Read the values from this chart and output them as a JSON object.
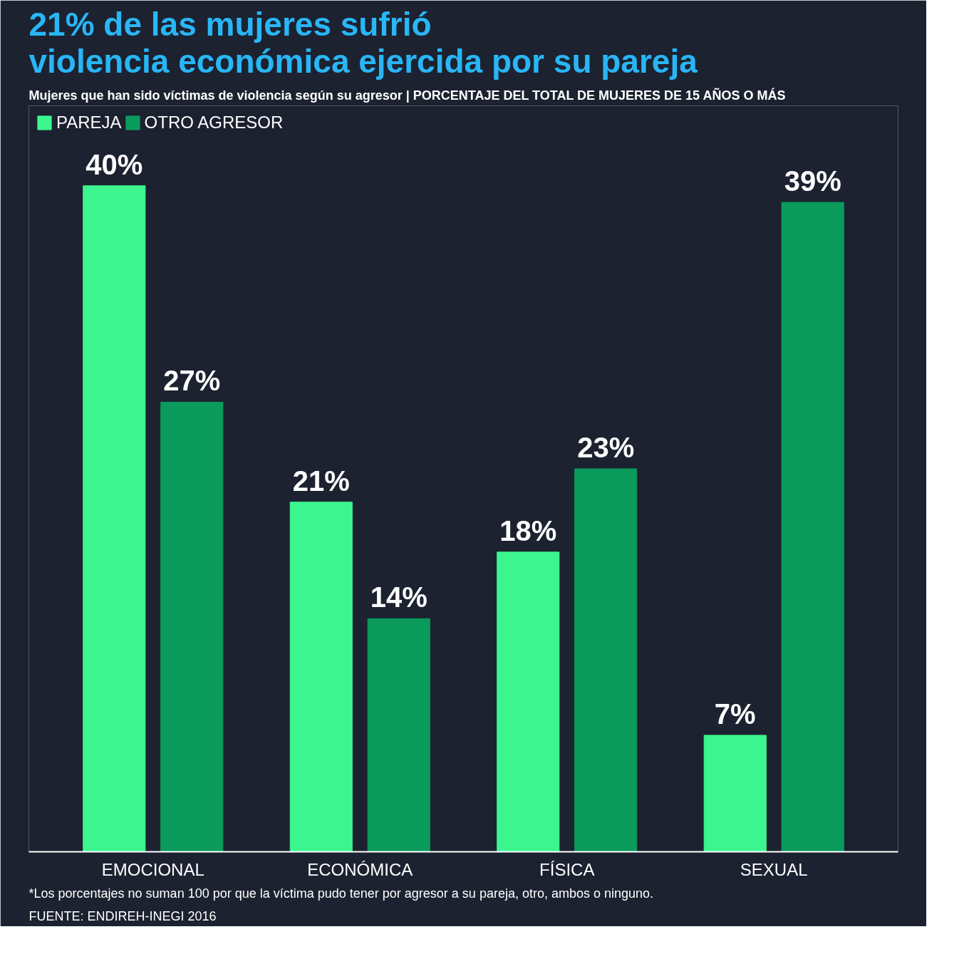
{
  "chart_data": {
    "type": "bar",
    "title": "21% de las mujeres sufrió violencia económica ejercida por su pareja",
    "subtitle": "Mujeres que han sido víctimas de violencia según su agresor | PORCENTAJE DEL TOTAL DE MUJERES DE 15 AÑOS O MÁS",
    "categories": [
      "EMOCIONAL",
      "ECONÓMICA",
      "FÍSICA",
      "SEXUAL"
    ],
    "series": [
      {
        "name": "PAREJA",
        "color": "#3cf58f",
        "values": [
          40,
          21,
          18,
          7
        ],
        "value_labels": [
          "40%",
          "21%",
          "18%",
          "7%"
        ]
      },
      {
        "name": "OTRO AGRESOR",
        "color": "#0a9b5c",
        "values": [
          27,
          14,
          23,
          39
        ],
        "value_labels": [
          "27%",
          "14%",
          "23%",
          "39%"
        ]
      }
    ],
    "legend": "top left",
    "grid": false,
    "annotations": [
      "*Los porcentajes no suman 100 por que la víctima pudo tener por agresor a su pareja, otro, ambos o ninguno.",
      "FUENTE: ENDIREH-INEGI 2016"
    ]
  }
}
